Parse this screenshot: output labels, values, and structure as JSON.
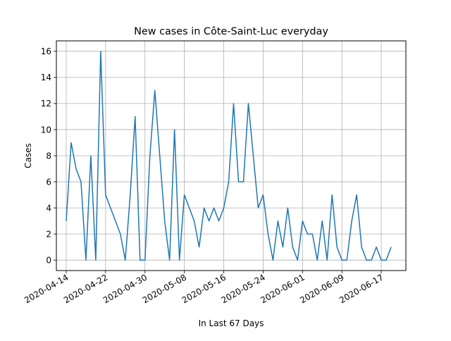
{
  "chart_data": {
    "type": "line",
    "title": "New cases in Côte-Saint-Luc everyday",
    "xlabel": "In Last 67 Days",
    "ylabel": "Cases",
    "grid": true,
    "line_color": "#1f77b4",
    "grid_color": "#b0b0b0",
    "x_ticks": [
      "2020-04-14",
      "2020-04-22",
      "2020-04-30",
      "2020-05-08",
      "2020-05-16",
      "2020-05-24",
      "2020-06-01",
      "2020-06-09",
      "2020-06-17"
    ],
    "y_ticks": [
      0,
      2,
      4,
      6,
      8,
      10,
      12,
      14,
      16
    ],
    "xlim": [
      "2020-04-12",
      "2020-06-22"
    ],
    "ylim": [
      -0.8,
      16.8
    ],
    "start_date": "2020-04-14",
    "series": [
      {
        "values": [
          3,
          9,
          7,
          6,
          0,
          8,
          0,
          16,
          5,
          4,
          3,
          2,
          0,
          5,
          11,
          0,
          0,
          8,
          13,
          8,
          3,
          0,
          10,
          0,
          5,
          4,
          3,
          1,
          4,
          3,
          4,
          3,
          4,
          6,
          12,
          6,
          6,
          12,
          8,
          4,
          5,
          2,
          0,
          3,
          1,
          4,
          1,
          0,
          3,
          2,
          2,
          0,
          3,
          0,
          5,
          1,
          0,
          0,
          3,
          5,
          1,
          0,
          0,
          1,
          0,
          0,
          1
        ]
      }
    ]
  }
}
